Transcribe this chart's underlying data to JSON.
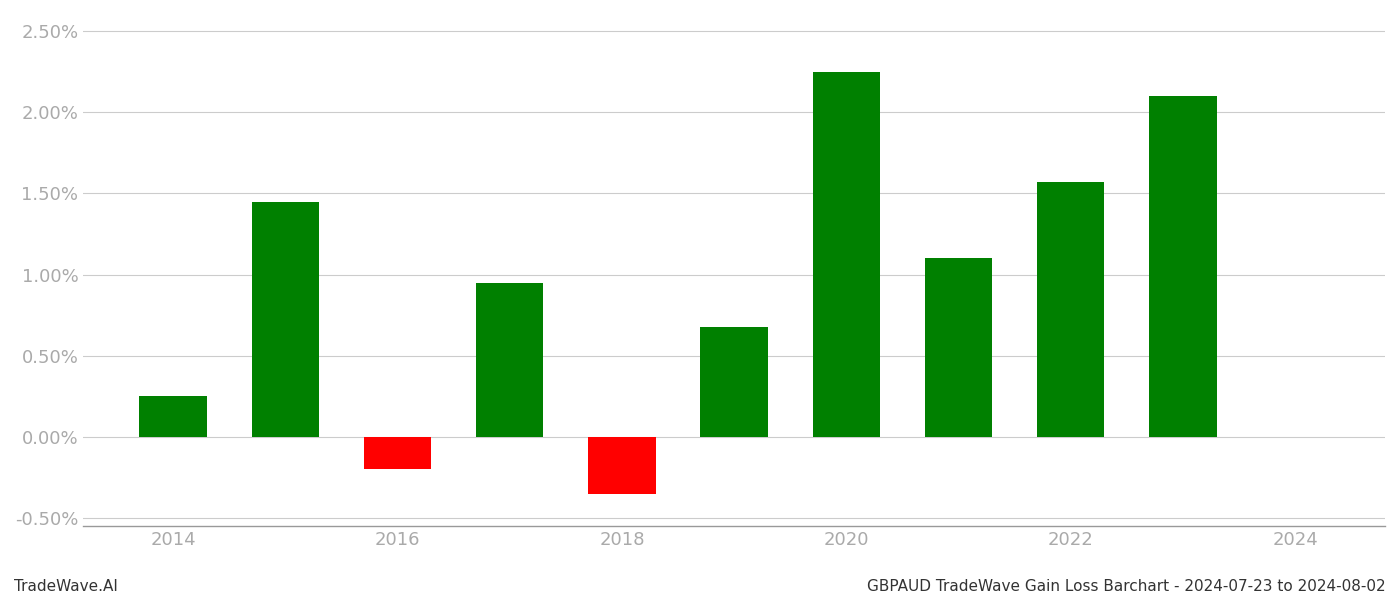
{
  "years": [
    2014,
    2015,
    2016,
    2017,
    2018,
    2019,
    2020,
    2021,
    2022,
    2023
  ],
  "values": [
    0.0025,
    0.0145,
    -0.002,
    0.0095,
    -0.0035,
    0.0068,
    0.0225,
    0.011,
    0.0157,
    0.021
  ],
  "color_positive": "#008000",
  "color_negative": "#ff0000",
  "footer_left": "TradeWave.AI",
  "footer_right": "GBPAUD TradeWave Gain Loss Barchart - 2024-07-23 to 2024-08-02",
  "ylim_min": -0.0055,
  "ylim_max": 0.026,
  "xlim_min": 2013.2,
  "xlim_max": 2024.8,
  "background_color": "#ffffff",
  "grid_color": "#cccccc",
  "tick_label_color": "#aaaaaa",
  "bar_width": 0.6,
  "xtick_positions": [
    2014,
    2016,
    2018,
    2020,
    2022,
    2024
  ],
  "ytick_step": 0.005,
  "footer_fontsize": 11,
  "tick_fontsize": 13
}
